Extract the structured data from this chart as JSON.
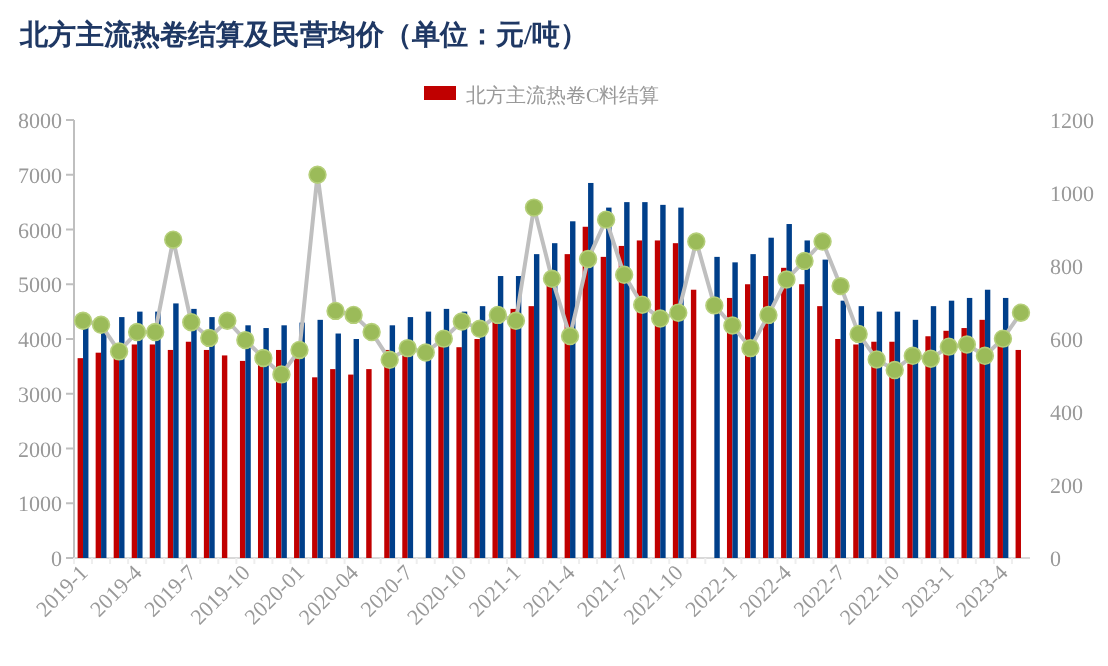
{
  "chart_data": {
    "type": "bar",
    "title": "北方主流热卷结算及民营均价（单位：元/吨）",
    "categories": [
      "2019-1",
      null,
      null,
      "2019-4",
      null,
      null,
      "2019-7",
      null,
      null,
      "2019-10",
      null,
      null,
      "2020-01",
      null,
      null,
      "2020-04",
      null,
      null,
      "2020-7",
      null,
      null,
      "2020-10",
      null,
      null,
      "2021-1",
      null,
      null,
      "2021-4",
      null,
      null,
      "2021-7",
      null,
      null,
      "2021-10",
      null,
      null,
      "2022-1",
      null,
      null,
      "2022-4",
      null,
      null,
      "2022-7",
      null,
      null,
      "2022-10",
      null,
      null,
      "2023-1",
      null,
      null,
      "2023-4",
      null
    ],
    "series": [
      {
        "name": "北方主流热卷C料结算",
        "color": "#c00000",
        "values": [
          3650,
          3750,
          3650,
          3900,
          3900,
          3800,
          3950,
          3800,
          3700,
          3600,
          3550,
          3800,
          3700,
          3300,
          3450,
          3350,
          3450,
          3800,
          3700,
          null,
          3900,
          3850,
          4000,
          4350,
          4550,
          4600,
          5000,
          5550,
          6050,
          5500,
          5700,
          5800,
          5800,
          5750,
          4900,
          null,
          4750,
          5000,
          5150,
          5300,
          5000,
          4600,
          4000,
          3900,
          3950,
          3950,
          3550,
          4050,
          4150,
          4200,
          4350,
          3950,
          3800
        ]
      },
      {
        "color": "#003f8a",
        "values": [
          4250,
          4200,
          4400,
          4500,
          4500,
          4650,
          4550,
          4400,
          null,
          4250,
          4200,
          4250,
          4300,
          4350,
          4100,
          4000,
          null,
          4250,
          4400,
          4500,
          4550,
          4500,
          4600,
          5150,
          5150,
          5550,
          5750,
          6150,
          6850,
          6400,
          6500,
          6500,
          6450,
          6400,
          null,
          5500,
          5400,
          5550,
          5850,
          6100,
          5800,
          5450,
          4700,
          4600,
          4500,
          4500,
          4350,
          4600,
          4700,
          4750,
          4900,
          4750,
          null
        ]
      },
      {
        "type": "line",
        "axis": "y2",
        "color": "#bfbfbf",
        "marker": "circle",
        "values": [
          650,
          639,
          566,
          619,
          619,
          872,
          646,
          603,
          650,
          597,
          548,
          503,
          570,
          1050,
          677,
          666,
          619,
          543,
          575,
          563,
          601,
          648,
          628,
          666,
          650,
          960,
          765,
          608,
          819,
          927,
          776,
          694,
          656,
          672,
          867,
          692,
          637,
          575,
          666,
          763,
          814,
          867,
          745,
          614,
          544,
          515,
          554,
          546,
          579,
          585,
          554,
          601,
          672
        ]
      }
    ],
    "ylim": [
      0,
      8000
    ],
    "yticks": [
      0,
      1000,
      2000,
      3000,
      4000,
      5000,
      6000,
      7000,
      8000
    ],
    "y2lim": [
      0,
      1200
    ],
    "y2ticks": [
      0,
      200,
      400,
      600,
      800,
      1000,
      1200
    ],
    "legend": "top"
  }
}
